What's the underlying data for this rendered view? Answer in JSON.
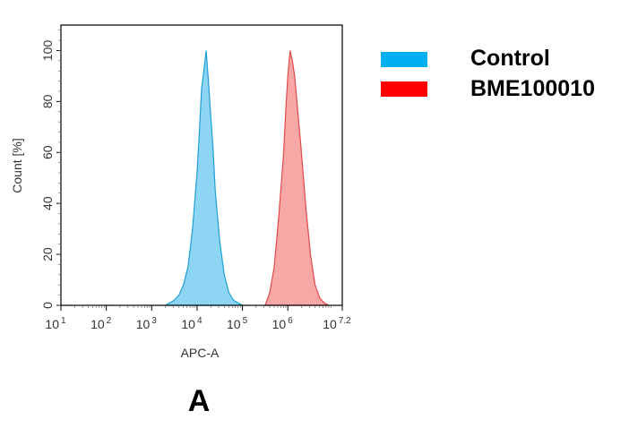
{
  "chart_data": {
    "type": "area",
    "title": "",
    "xlabel": "APC-A",
    "ylabel": "Count [%]",
    "xscale": "log",
    "xlim": [
      10,
      15848932
    ],
    "ylim": [
      0,
      110
    ],
    "xticks": [
      {
        "base": "10",
        "exp": "1"
      },
      {
        "base": "10",
        "exp": "2"
      },
      {
        "base": "10",
        "exp": "3"
      },
      {
        "base": "10",
        "exp": "4"
      },
      {
        "base": "10",
        "exp": "5"
      },
      {
        "base": "10",
        "exp": "6"
      },
      {
        "base": "10",
        "exp": "7.2"
      }
    ],
    "yticks": [
      "0",
      "20",
      "40",
      "60",
      "80",
      "100"
    ],
    "grid": false,
    "legend_position": "right",
    "panel_label": "A",
    "series": [
      {
        "name": "Control",
        "color": "#00b0f0",
        "fill": "#87d3f2",
        "stroke": "#1e9fd6",
        "x": [
          2000,
          3160,
          3980,
          5010,
          6310,
          7940,
          10000,
          11220,
          12590,
          14130,
          15850,
          17780,
          19950,
          22390,
          25120,
          31620,
          39810,
          50120,
          63100,
          100000
        ],
        "y": [
          0,
          2,
          4,
          8,
          15,
          30,
          52,
          68,
          85,
          92,
          100,
          88,
          75,
          62,
          45,
          25,
          12,
          5,
          2,
          0
        ]
      },
      {
        "name": "BME100010",
        "color": "#ff0000",
        "fill": "#f8a2a2",
        "stroke": "#e04a4a",
        "x": [
          316200,
          398100,
          501200,
          631000,
          794300,
          891300,
          1000000,
          1122000,
          1259000,
          1413000,
          1585000,
          1995000,
          2512000,
          3162000,
          3981000,
          5012000,
          6310000,
          7943000
        ],
        "y": [
          0,
          5,
          15,
          35,
          58,
          75,
          90,
          100,
          96,
          90,
          80,
          60,
          38,
          20,
          8,
          3,
          1,
          0
        ]
      }
    ]
  }
}
